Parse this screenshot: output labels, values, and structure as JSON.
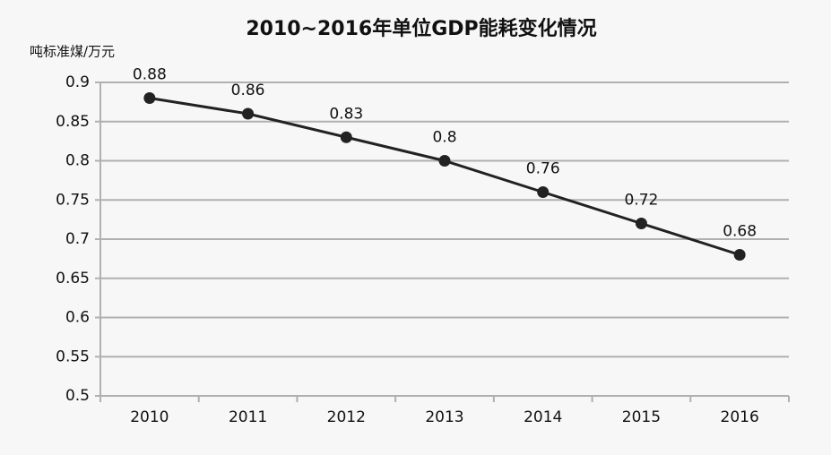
{
  "chart_data": {
    "type": "line",
    "title": "2010~2016年单位GDP能耗变化情况",
    "y_label": "吨标准煤/万元",
    "categories": [
      "2010",
      "2011",
      "2012",
      "2013",
      "2014",
      "2015",
      "2016"
    ],
    "values": [
      0.88,
      0.86,
      0.83,
      0.8,
      0.76,
      0.72,
      0.68
    ],
    "color": "#222222",
    "ylim": [
      0.5,
      0.9
    ],
    "yticks": [
      0.5,
      0.55,
      0.6,
      0.65,
      0.7,
      0.75,
      0.8,
      0.85,
      0.9
    ],
    "grid": true
  }
}
